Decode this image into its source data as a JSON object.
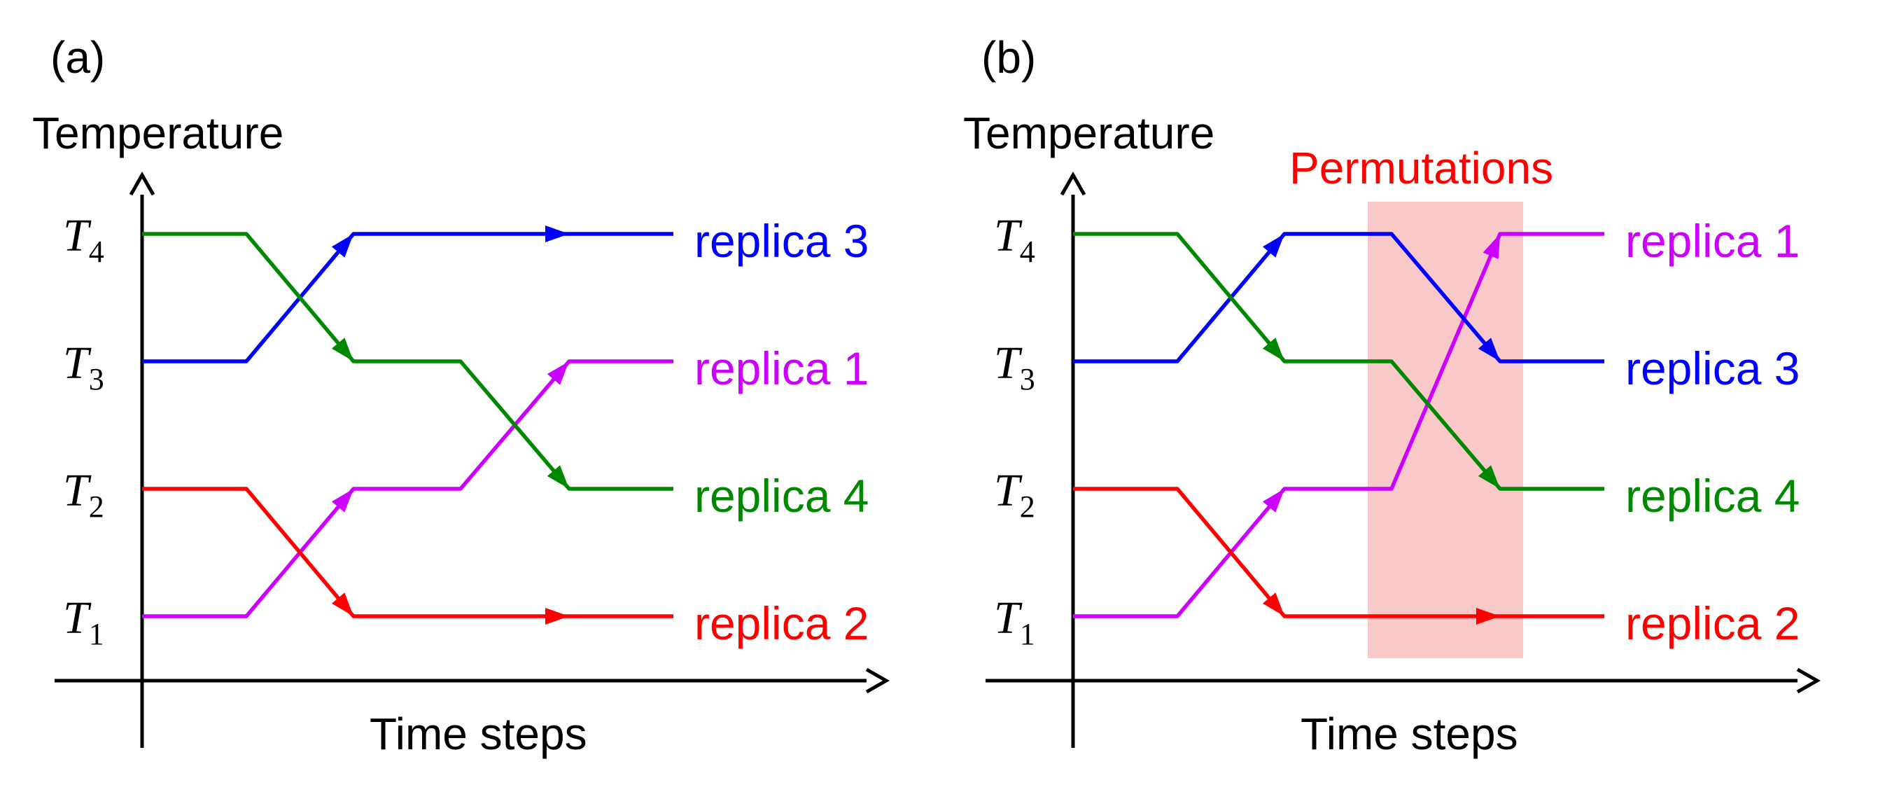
{
  "figure": {
    "colors": {
      "replica_1": "#cc00ff",
      "replica_2": "#ff0000",
      "replica_3": "#0000ff",
      "replica_4": "#008800",
      "permutation_band": "#f9c9c9",
      "permutation_text": "#ff0000",
      "replica_3_in_band": "#3a1fc0",
      "replica_4_in_band": "#2e7a18"
    },
    "panels": [
      {
        "label": "(a)",
        "y_axis_title": "Temperature",
        "x_axis_title": "Time steps",
        "ticks": [
          {
            "main": "T",
            "sub": "4"
          },
          {
            "main": "T",
            "sub": "3"
          },
          {
            "main": "T",
            "sub": "2"
          },
          {
            "main": "T",
            "sub": "1"
          }
        ],
        "replica_labels": [
          "replica 3",
          "replica 1",
          "replica 4",
          "replica 2"
        ]
      },
      {
        "label": "(b)",
        "y_axis_title": "Temperature",
        "x_axis_title": "Time steps",
        "annotation": "Permutations",
        "ticks": [
          {
            "main": "T",
            "sub": "4"
          },
          {
            "main": "T",
            "sub": "3"
          },
          {
            "main": "T",
            "sub": "2"
          },
          {
            "main": "T",
            "sub": "1"
          }
        ],
        "replica_labels": [
          "replica 1",
          "replica 3",
          "replica 4",
          "replica 2"
        ]
      }
    ],
    "trajectories": {
      "panel_a": [
        {
          "replica": "replica 1",
          "color_key": "replica_1",
          "levels": [
            1,
            1,
            2,
            2,
            3
          ]
        },
        {
          "replica": "replica 2",
          "color_key": "replica_2",
          "levels": [
            2,
            2,
            1,
            1,
            1
          ]
        },
        {
          "replica": "replica 3",
          "color_key": "replica_3",
          "levels": [
            3,
            3,
            4,
            4,
            4
          ]
        },
        {
          "replica": "replica 4",
          "color_key": "replica_4",
          "levels": [
            4,
            4,
            3,
            3,
            2
          ]
        }
      ],
      "panel_b": [
        {
          "replica": "replica 1",
          "color_key": "replica_1",
          "levels": [
            1,
            1,
            2,
            2,
            4
          ]
        },
        {
          "replica": "replica 2",
          "color_key": "replica_2",
          "levels": [
            2,
            2,
            1,
            1,
            1
          ]
        },
        {
          "replica": "replica 3",
          "color_key": "replica_3",
          "levels": [
            3,
            3,
            4,
            4,
            3
          ]
        },
        {
          "replica": "replica 4",
          "color_key": "replica_4",
          "levels": [
            4,
            4,
            3,
            3,
            2
          ]
        }
      ]
    }
  }
}
